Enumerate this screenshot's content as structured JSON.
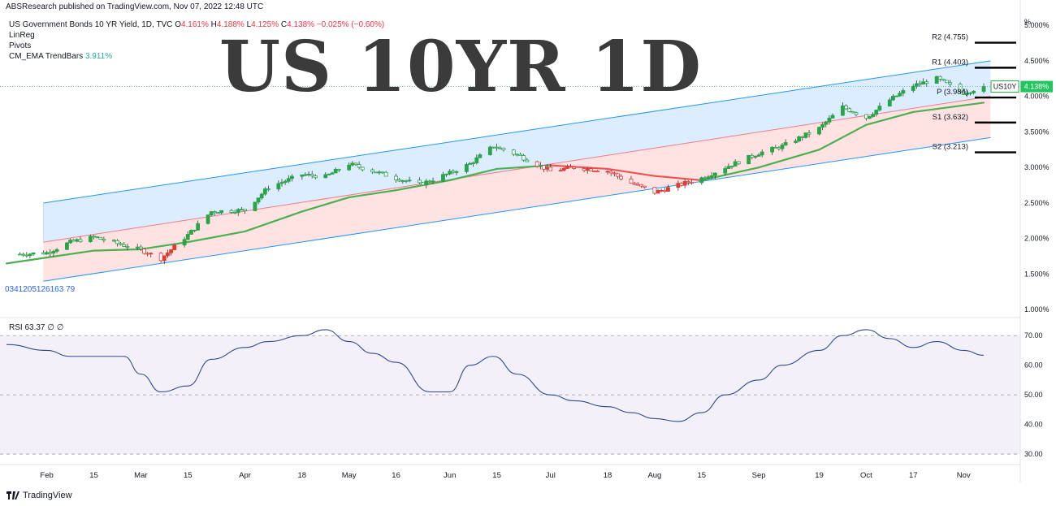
{
  "header": {
    "publisher": "ABSResearch published on TradingView.com, Nov 07, 2022 12:48 UTC"
  },
  "legend": {
    "symbol": "US Government Bonds 10 YR Yield, 1D, TVC",
    "o_label": "O",
    "o_value": "4.161%",
    "h_label": "H",
    "h_value": "4.188%",
    "l_label": "L",
    "l_value": "4.125%",
    "c_label": "C",
    "c_value": "4.138%",
    "change": "−0.025% (−0.60%)",
    "linreg": "LinReg",
    "pivots": "Pivots",
    "ema_name": "CM_EMA TrendBars",
    "ema_value": "3.911%"
  },
  "overlay_title": "US 10YR 1D",
  "linreg_code": "0341205126163 79",
  "symbol_tag": "US10Y",
  "price_tag": "4.138%",
  "footer": {
    "brand": "TradingView"
  },
  "chart_data": [
    {
      "type": "candlestick",
      "y_unit": "%",
      "ylim": [
        0.9,
        5.15
      ],
      "y_ticks": [
        "1.000%",
        "1.500%",
        "2.000%",
        "2.500%",
        "3.000%",
        "3.500%",
        "4.000%",
        "4.500%",
        "5.000%"
      ],
      "x_ticks": [
        "Feb",
        "15",
        "Mar",
        "15",
        "Apr",
        "18",
        "May",
        "16",
        "Jun",
        "15",
        "Jul",
        "18",
        "Aug",
        "15",
        "Sep",
        "19",
        "Oct",
        "17",
        "Nov"
      ],
      "x_tick_dates": [
        "2022-02-01",
        "2022-02-15",
        "2022-03-01",
        "2022-03-15",
        "2022-04-01",
        "2022-04-18",
        "2022-05-02",
        "2022-05-16",
        "2022-06-01",
        "2022-06-15",
        "2022-07-01",
        "2022-07-18",
        "2022-08-01",
        "2022-08-15",
        "2022-09-01",
        "2022-09-19",
        "2022-10-03",
        "2022-10-17",
        "2022-11-01"
      ],
      "close_series": {
        "dates": [
          "2022-01-24",
          "2022-02-01",
          "2022-02-08",
          "2022-02-15",
          "2022-02-22",
          "2022-03-01",
          "2022-03-07",
          "2022-03-15",
          "2022-03-22",
          "2022-04-01",
          "2022-04-08",
          "2022-04-18",
          "2022-04-25",
          "2022-05-02",
          "2022-05-09",
          "2022-05-16",
          "2022-05-23",
          "2022-06-01",
          "2022-06-07",
          "2022-06-14",
          "2022-06-21",
          "2022-07-01",
          "2022-07-08",
          "2022-07-18",
          "2022-07-25",
          "2022-08-01",
          "2022-08-08",
          "2022-08-15",
          "2022-08-22",
          "2022-09-01",
          "2022-09-08",
          "2022-09-19",
          "2022-09-26",
          "2022-10-03",
          "2022-10-10",
          "2022-10-17",
          "2022-10-24",
          "2022-11-01",
          "2022-11-07"
        ],
        "values": [
          1.78,
          1.8,
          1.95,
          2.02,
          1.93,
          1.84,
          1.72,
          2.05,
          2.38,
          2.4,
          2.72,
          2.9,
          2.87,
          3.05,
          2.95,
          2.85,
          2.76,
          2.92,
          3.05,
          3.3,
          3.18,
          2.95,
          3.0,
          2.95,
          2.78,
          2.65,
          2.75,
          2.85,
          3.0,
          3.2,
          3.3,
          3.55,
          3.85,
          3.7,
          3.95,
          4.15,
          4.25,
          4.05,
          4.138
        ]
      },
      "last_price": 4.138,
      "linreg_channel": {
        "start_date": "2022-01-31",
        "end_date": "2022-11-09",
        "upper": [
          2.5,
          4.5
        ],
        "mid": [
          1.95,
          4.0
        ],
        "lower": [
          1.4,
          3.42
        ]
      },
      "ema": {
        "dates": [
          "2022-01-20",
          "2022-02-15",
          "2022-03-01",
          "2022-03-15",
          "2022-04-01",
          "2022-04-18",
          "2022-05-02",
          "2022-05-16",
          "2022-06-01",
          "2022-06-15",
          "2022-07-01",
          "2022-07-18",
          "2022-08-01",
          "2022-08-15",
          "2022-09-01",
          "2022-09-19",
          "2022-10-03",
          "2022-10-17",
          "2022-11-07"
        ],
        "values": [
          1.65,
          1.83,
          1.85,
          1.95,
          2.1,
          2.38,
          2.58,
          2.68,
          2.82,
          2.98,
          3.03,
          2.98,
          2.88,
          2.82,
          3.0,
          3.25,
          3.6,
          3.78,
          3.911
        ]
      },
      "pivots": [
        {
          "label": "R2 (4.755)",
          "value": 4.755
        },
        {
          "label": "R1 (4.403)",
          "value": 4.403
        },
        {
          "label": "P (3.984)",
          "value": 3.984
        },
        {
          "label": "S1 (3.632)",
          "value": 3.632
        },
        {
          "label": "S2 (3.213)",
          "value": 3.213
        }
      ]
    },
    {
      "type": "line",
      "name": "RSI",
      "label": "RSI",
      "value_text": "63.37",
      "extra_text": "∅ ∅",
      "ylim": [
        27,
        75
      ],
      "y_ticks": [
        "30.00",
        "40.00",
        "50.00",
        "60.00",
        "70.00"
      ],
      "bands": [
        30,
        50,
        70
      ],
      "x": [
        "2022-01-20",
        "2022-02-01",
        "2022-02-08",
        "2022-02-15",
        "2022-02-24",
        "2022-03-01",
        "2022-03-07",
        "2022-03-15",
        "2022-03-22",
        "2022-04-01",
        "2022-04-08",
        "2022-04-18",
        "2022-04-25",
        "2022-05-02",
        "2022-05-09",
        "2022-05-16",
        "2022-05-26",
        "2022-06-01",
        "2022-06-07",
        "2022-06-14",
        "2022-06-21",
        "2022-07-01",
        "2022-07-08",
        "2022-07-18",
        "2022-07-25",
        "2022-08-01",
        "2022-08-08",
        "2022-08-15",
        "2022-08-22",
        "2022-09-01",
        "2022-09-08",
        "2022-09-19",
        "2022-09-26",
        "2022-10-03",
        "2022-10-10",
        "2022-10-17",
        "2022-10-24",
        "2022-11-01",
        "2022-11-07"
      ],
      "values": [
        67,
        65,
        63,
        63,
        63,
        57,
        51,
        53,
        62,
        66,
        68,
        70,
        72,
        68,
        64,
        61,
        51,
        51,
        60,
        63,
        57,
        50,
        48,
        46,
        44,
        42,
        41,
        44,
        50,
        55,
        60,
        65,
        70,
        72,
        69,
        66,
        68,
        65,
        63.37
      ]
    }
  ]
}
